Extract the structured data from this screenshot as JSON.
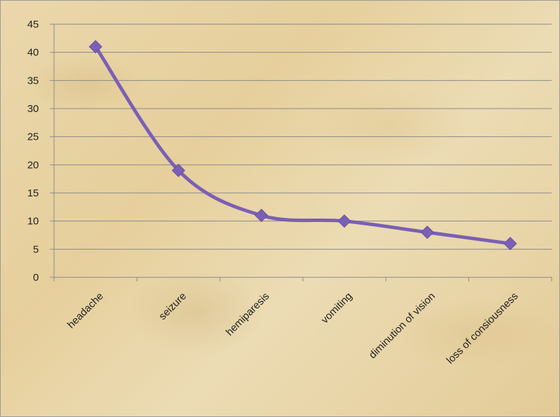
{
  "chart_data": {
    "type": "line",
    "categories": [
      "headache",
      "seizure",
      "hemiparesis",
      "vomiting",
      "diminution of vision",
      "loss of consiousness"
    ],
    "series": [
      {
        "values": [
          41,
          19,
          11,
          10,
          8,
          6
        ]
      }
    ],
    "ylim": [
      0,
      45
    ],
    "yticks": [
      "0",
      "5",
      "10",
      "15",
      "20",
      "25",
      "30",
      "35",
      "40",
      "45"
    ],
    "grid": true,
    "smooth": true,
    "marker": "diamond",
    "colors": {
      "line": "#7b5fb5",
      "grid": "#8a8a8a",
      "axis": "#8a8a8a"
    }
  }
}
